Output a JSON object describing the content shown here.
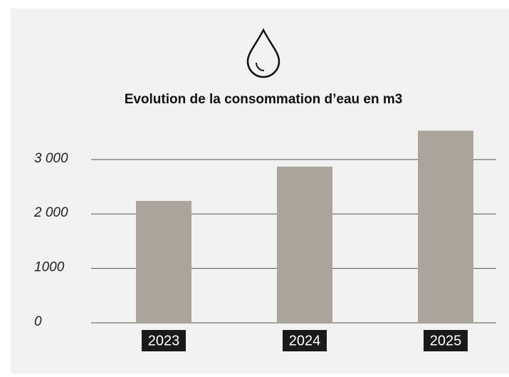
{
  "chart_data": {
    "type": "bar",
    "title": "Evolution de la consommation d’eau en m3",
    "categories": [
      "2023",
      "2024",
      "2025"
    ],
    "values": [
      2240,
      2870,
      3530
    ],
    "color": "#aaa49b",
    "ylim": [
      0,
      3600
    ],
    "yticks": [
      0,
      1000,
      {
        "value": 2000,
        "label": "2 000"
      },
      {
        "value": 3000,
        "label": "3 000"
      }
    ],
    "grid": true
  }
}
